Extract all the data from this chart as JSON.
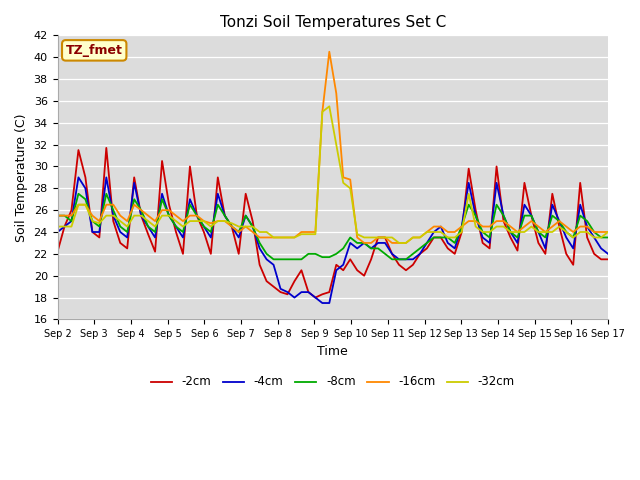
{
  "title": "Tonzi Soil Temperatures Set C",
  "xlabel": "Time",
  "ylabel": "Soil Temperature (C)",
  "ylim": [
    16,
    42
  ],
  "yticks": [
    16,
    18,
    20,
    22,
    24,
    26,
    28,
    30,
    32,
    34,
    36,
    38,
    40,
    42
  ],
  "annotation": "TZ_fmet",
  "bg_color": "#dcdcdc",
  "legend_order": [
    "-2cm",
    "-4cm",
    "-8cm",
    "-16cm",
    "-32cm"
  ],
  "xtick_labels": [
    "Sep 2",
    "Sep 3",
    "Sep 4",
    "Sep 5",
    "Sep 6",
    "Sep 7",
    "Sep 8",
    "Sep 9",
    "Sep 10",
    "Sep 11",
    "Sep 12",
    "Sep 13",
    "Sep 14",
    "Sep 15",
    "Sep 16",
    "Sep 17"
  ],
  "series": {
    "-2cm": {
      "color": "#cc0000",
      "values": [
        22.2,
        24.5,
        26.0,
        31.5,
        29.0,
        24.0,
        23.5,
        31.7,
        25.0,
        23.0,
        22.5,
        29.0,
        25.5,
        23.8,
        22.2,
        30.5,
        26.5,
        24.0,
        22.0,
        30.0,
        25.5,
        24.0,
        22.0,
        29.0,
        25.5,
        24.5,
        22.0,
        27.5,
        25.0,
        21.0,
        19.5,
        19.0,
        18.5,
        18.3,
        19.5,
        20.5,
        18.5,
        18.0,
        18.3,
        18.5,
        21.0,
        20.5,
        21.5,
        20.5,
        20.0,
        21.5,
        23.5,
        23.5,
        22.0,
        21.0,
        20.5,
        21.0,
        22.0,
        22.5,
        23.5,
        23.5,
        22.5,
        22.0,
        24.0,
        29.8,
        26.0,
        23.0,
        22.5,
        30.0,
        25.0,
        23.5,
        22.3,
        28.5,
        25.5,
        23.0,
        22.0,
        27.5,
        24.5,
        22.0,
        21.0,
        28.5,
        23.5,
        22.0,
        21.5,
        21.5
      ]
    },
    "-4cm": {
      "color": "#0000cc",
      "values": [
        24.0,
        24.5,
        25.0,
        29.0,
        28.0,
        24.0,
        24.0,
        29.0,
        25.5,
        24.0,
        23.5,
        28.5,
        25.5,
        24.5,
        23.5,
        27.5,
        25.5,
        24.5,
        23.5,
        27.0,
        25.5,
        24.5,
        23.5,
        27.5,
        25.5,
        24.5,
        23.5,
        25.5,
        24.5,
        22.5,
        21.5,
        21.0,
        18.8,
        18.5,
        18.0,
        18.5,
        18.5,
        18.0,
        17.5,
        17.5,
        20.5,
        21.0,
        23.0,
        22.5,
        23.0,
        22.5,
        23.0,
        23.0,
        22.0,
        21.5,
        21.5,
        21.5,
        22.0,
        23.0,
        24.0,
        24.5,
        23.0,
        22.5,
        24.5,
        28.5,
        25.5,
        23.5,
        23.0,
        28.5,
        25.5,
        24.0,
        23.0,
        26.5,
        25.5,
        24.0,
        22.5,
        26.5,
        25.0,
        23.5,
        22.5,
        26.5,
        24.5,
        23.5,
        22.5,
        22.0
      ]
    },
    "-8cm": {
      "color": "#00aa00",
      "values": [
        25.5,
        25.5,
        25.0,
        27.5,
        27.0,
        25.0,
        24.5,
        27.5,
        26.0,
        24.5,
        24.0,
        27.0,
        26.0,
        24.5,
        24.0,
        27.0,
        25.5,
        24.5,
        24.0,
        26.5,
        25.5,
        24.5,
        24.0,
        26.5,
        25.5,
        24.5,
        24.0,
        25.5,
        24.5,
        23.0,
        22.0,
        21.5,
        21.5,
        21.5,
        21.5,
        21.5,
        22.0,
        22.0,
        21.7,
        21.7,
        22.0,
        22.5,
        23.5,
        23.0,
        23.0,
        22.5,
        22.5,
        22.0,
        21.5,
        21.5,
        21.5,
        22.0,
        22.5,
        23.0,
        23.5,
        23.5,
        23.5,
        23.0,
        24.5,
        26.5,
        25.5,
        24.0,
        23.5,
        26.5,
        25.5,
        24.0,
        23.5,
        25.5,
        25.5,
        24.0,
        23.5,
        25.5,
        25.0,
        24.0,
        23.5,
        25.5,
        25.0,
        24.0,
        23.5,
        23.5
      ]
    },
    "-16cm": {
      "color": "#ff8800",
      "values": [
        25.5,
        25.5,
        25.5,
        26.5,
        26.5,
        25.5,
        25.0,
        26.5,
        26.5,
        25.5,
        25.0,
        26.5,
        26.0,
        25.5,
        25.0,
        26.0,
        26.0,
        25.5,
        25.0,
        25.5,
        25.5,
        25.0,
        24.8,
        25.0,
        25.0,
        24.5,
        24.0,
        24.5,
        24.0,
        23.5,
        23.5,
        23.5,
        23.5,
        23.5,
        23.5,
        24.0,
        24.0,
        24.0,
        35.0,
        40.5,
        36.7,
        29.0,
        28.8,
        23.5,
        23.0,
        23.0,
        23.5,
        23.5,
        23.0,
        23.0,
        23.0,
        23.5,
        23.5,
        24.0,
        24.5,
        24.5,
        24.0,
        24.0,
        24.5,
        25.0,
        25.0,
        24.5,
        24.5,
        25.0,
        25.0,
        24.5,
        24.0,
        24.5,
        25.0,
        24.5,
        24.0,
        24.5,
        25.0,
        24.5,
        24.0,
        24.5,
        24.5,
        24.0,
        24.0,
        24.0
      ]
    },
    "-32cm": {
      "color": "#cccc00",
      "values": [
        24.5,
        24.5,
        24.5,
        26.5,
        26.5,
        25.0,
        24.8,
        25.5,
        25.5,
        25.0,
        24.5,
        25.5,
        25.5,
        25.0,
        24.5,
        25.5,
        25.5,
        25.0,
        24.5,
        25.0,
        25.0,
        25.0,
        24.5,
        25.0,
        25.0,
        24.8,
        24.5,
        24.5,
        24.5,
        24.0,
        24.0,
        23.5,
        23.5,
        23.5,
        23.5,
        23.8,
        23.8,
        23.8,
        35.0,
        35.5,
        32.0,
        28.5,
        28.0,
        23.8,
        23.5,
        23.5,
        23.5,
        23.5,
        23.5,
        23.0,
        23.0,
        23.5,
        23.5,
        24.0,
        24.0,
        24.0,
        23.5,
        23.5,
        24.0,
        27.5,
        24.5,
        24.0,
        24.0,
        24.5,
        24.5,
        24.0,
        24.0,
        24.0,
        24.5,
        24.0,
        24.0,
        24.0,
        24.5,
        24.0,
        23.5,
        24.0,
        24.0,
        23.5,
        23.5,
        24.0
      ]
    }
  }
}
